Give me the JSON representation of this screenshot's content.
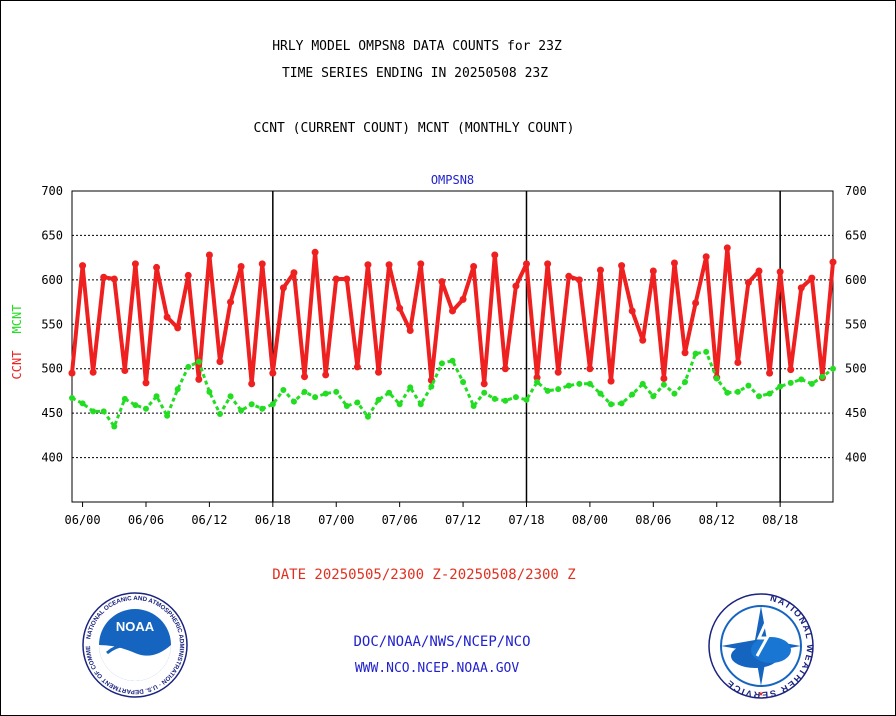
{
  "page": {
    "title_line1": "HRLY MODEL OMPSN8 DATA COUNTS for 23Z",
    "title_line2": "TIME SERIES ENDING IN 20250508 23Z",
    "title_line3": "CCNT (CURRENT COUNT) MCNT (MONTHLY COUNT)",
    "date_range": "DATE 20250505/2300 Z-20250508/2300 Z",
    "link_org": "DOC/NOAA/NWS/NCEP/NCO",
    "link_web": "WWW.NCO.NCEP.NOAA.GOV"
  },
  "logos": {
    "left": {
      "icon": "noaa-logo-icon",
      "text": "NOAA",
      "ring_text": "NATIONAL OCEANIC AND ATMOSPHERIC ADMINISTRATION · U.S. DEPARTMENT OF COMMERCE"
    },
    "right": {
      "icon": "nws-logo-icon",
      "ring_text": "NATIONAL WEATHER SERVICE"
    }
  },
  "colors": {
    "ccnt": "#ee2020",
    "mcnt": "#22dd22",
    "plot_title": "#2222cc",
    "date_text": "#e03020",
    "link_text": "#2222cc"
  },
  "chart_data": {
    "type": "line",
    "title": "OMPSN8",
    "ylabel_left": "CCNT",
    "ylabel_right": "MCNT",
    "ylim": [
      350,
      700
    ],
    "yticks": [
      400,
      450,
      500,
      550,
      600,
      650,
      700
    ],
    "xticks": [
      "06/00",
      "06/06",
      "06/12",
      "06/18",
      "07/00",
      "07/06",
      "07/12",
      "07/18",
      "08/00",
      "08/06",
      "08/12",
      "08/18"
    ],
    "x_start": "05/23",
    "x_end": "08/23",
    "day_boundaries": [
      "06/00 + 18h (05/18→06/18)",
      "07/18",
      "08/18"
    ],
    "grid": "horizontal dashed",
    "series": [
      {
        "name": "CCNT",
        "values": [
          495,
          616,
          496,
          603,
          601,
          498,
          618,
          484,
          614,
          558,
          546,
          605,
          488,
          628,
          508,
          575,
          615,
          483,
          618,
          495,
          591,
          608,
          491,
          631,
          493,
          601,
          601,
          502,
          617,
          496,
          617,
          568,
          543,
          618,
          487,
          598,
          565,
          578,
          615,
          483,
          628,
          500,
          593,
          618,
          490,
          618,
          496,
          604,
          600,
          500,
          611,
          486,
          616,
          565,
          532,
          610,
          489,
          619,
          518,
          574,
          626,
          490,
          636,
          507,
          597,
          610,
          495,
          609,
          499,
          591,
          602,
          490,
          620
        ],
        "color": "#ee2020"
      },
      {
        "name": "MCNT",
        "values": [
          467,
          461,
          452,
          452,
          435,
          466,
          459,
          455,
          469,
          447,
          477,
          502,
          508,
          474,
          449,
          469,
          453,
          460,
          455,
          460,
          476,
          463,
          474,
          468,
          472,
          474,
          458,
          462,
          446,
          465,
          473,
          460,
          479,
          460,
          480,
          506,
          509,
          485,
          458,
          473,
          466,
          464,
          468,
          465,
          485,
          475,
          477,
          481,
          483,
          483,
          472,
          460,
          461,
          471,
          483,
          469,
          482,
          472,
          485,
          517,
          519,
          489,
          473,
          474,
          481,
          469,
          472,
          480,
          484,
          488,
          483,
          491,
          500
        ]
      }
    ]
  }
}
